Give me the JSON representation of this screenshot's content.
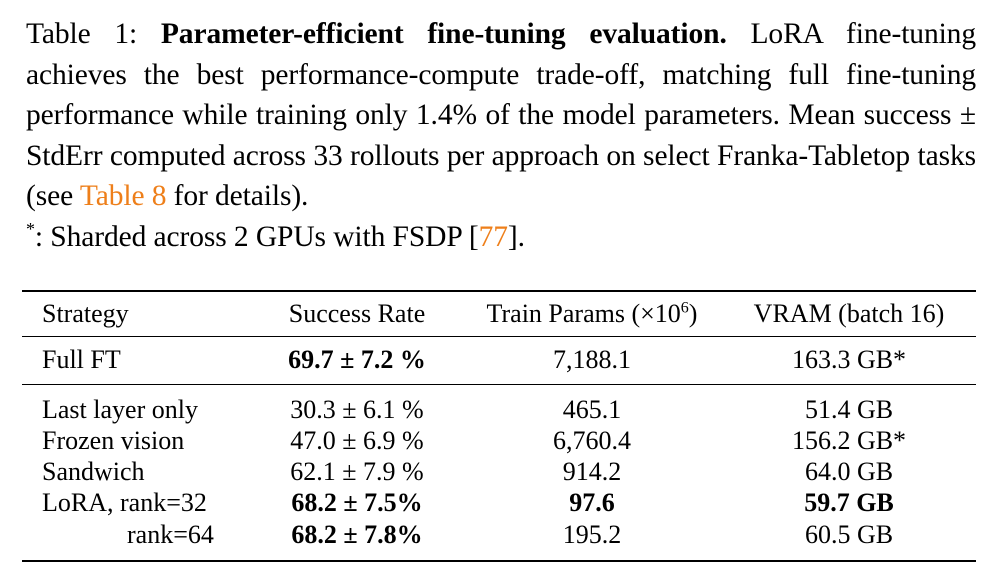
{
  "caption": {
    "label": "Table 1:",
    "title": "Parameter-efficient fine-tuning evaluation.",
    "text1": "LoRA fine-tuning achieves the best performance-compute trade-off, matching full fine-tuning performance while training only 1.4% of the model parameters. Mean success ± StdErr computed across 33 rollouts per approach on select Franka-Tabletop tasks (see",
    "ref_table": "Table 8",
    "text2": "for details).",
    "footnote_mark": "*",
    "footnote_text": ": Sharded across 2 GPUs with FSDP [",
    "ref_cite": "77",
    "footnote_end": "]."
  },
  "table": {
    "headers": {
      "strategy": "Strategy",
      "success": "Success Rate",
      "params": "Train Params (×10",
      "params_exp": "6",
      "params_close": ")",
      "vram": "VRAM (batch 16)"
    },
    "rows": [
      {
        "strategy": "Full FT",
        "success": "69.7 ± 7.2 %",
        "params": "7,188.1",
        "vram": "163.3 GB*"
      },
      {
        "strategy": "Last layer only",
        "success": "30.3 ± 6.1 %",
        "params": "465.1",
        "vram": "51.4 GB"
      },
      {
        "strategy": "Frozen vision",
        "success": "47.0 ± 6.9 %",
        "params": "6,760.4",
        "vram": "156.2 GB*"
      },
      {
        "strategy": "Sandwich",
        "success": "62.1 ± 7.9 %",
        "params": "914.2",
        "vram": "64.0 GB"
      },
      {
        "strategy": "LoRA, rank=32",
        "success": "68.2 ± 7.5%",
        "params": "97.6",
        "vram": "59.7 GB"
      },
      {
        "strategy": "rank=64",
        "success": "68.2 ± 7.8%",
        "params": "195.2",
        "vram": "60.5 GB"
      }
    ]
  }
}
